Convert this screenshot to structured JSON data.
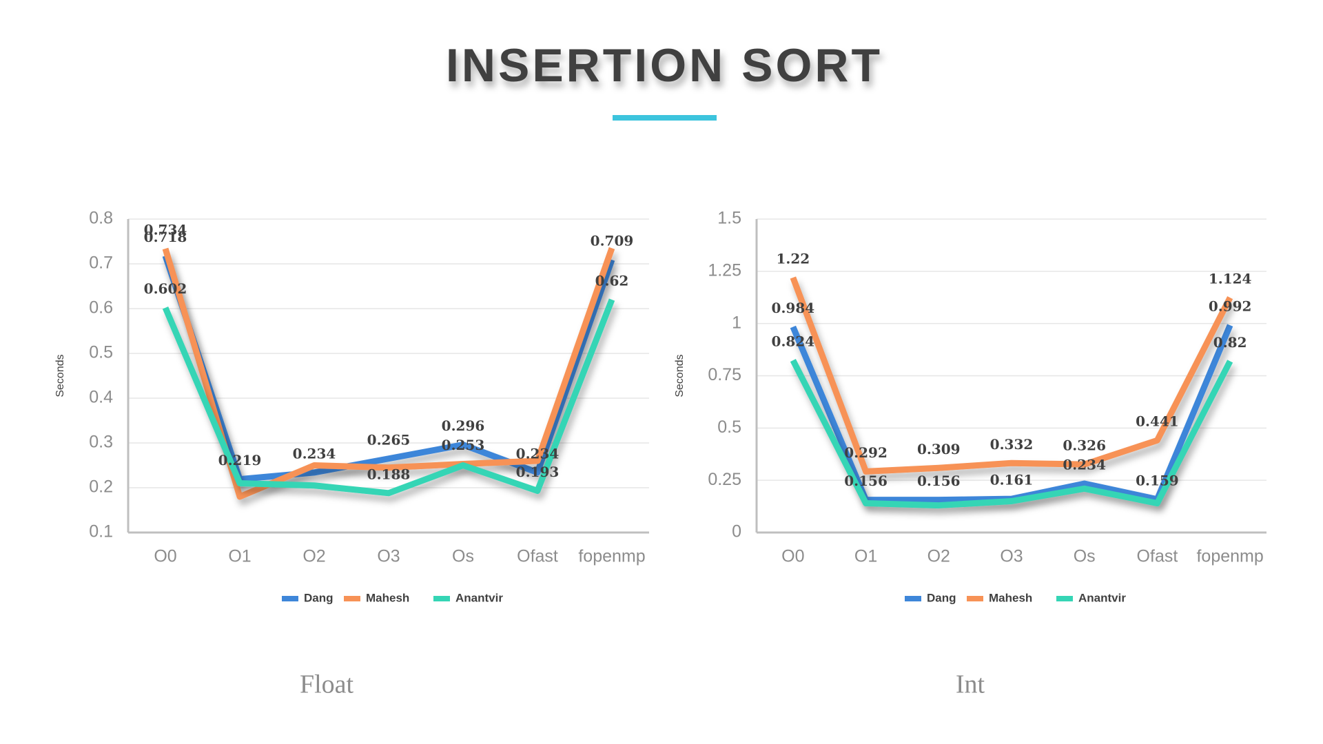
{
  "title": "INSERTION SORT",
  "chart_data": [
    {
      "type": "line",
      "subtitle": "Float",
      "y_label": "Seconds",
      "categories": [
        "O0",
        "O1",
        "O2",
        "O3",
        "Os",
        "Ofast",
        "fopenmp"
      ],
      "ylim": [
        0.1,
        0.8
      ],
      "yticks": [
        0.1,
        0.2,
        0.3,
        0.4,
        0.5,
        0.6,
        0.7,
        0.8
      ],
      "grid": true,
      "legend": "bottom",
      "series": [
        {
          "name": "Dang",
          "color": "#3e86d9",
          "values": [
            0.718,
            0.219,
            0.234,
            0.265,
            0.296,
            0.234,
            0.709
          ],
          "value_labels": [
            "0.718",
            "0.219",
            "0.234",
            "0.265",
            "0.296",
            "0.234",
            "0.709"
          ]
        },
        {
          "name": "Mahesh",
          "color": "#f79256",
          "values": [
            0.734,
            0.18,
            0.25,
            0.245,
            0.253,
            0.26,
            0.735
          ],
          "value_labels": [
            "0.734",
            null,
            null,
            null,
            "0.253",
            null,
            null
          ]
        },
        {
          "name": "Anantvir",
          "color": "#35d5b5",
          "values": [
            0.602,
            0.21,
            0.205,
            0.188,
            0.25,
            0.193,
            0.62
          ],
          "value_labels": [
            "0.602",
            null,
            null,
            "0.188",
            null,
            "0.193",
            "0.62"
          ]
        }
      ]
    },
    {
      "type": "line",
      "subtitle": "Int",
      "y_label": "Seconds",
      "categories": [
        "O0",
        "O1",
        "O2",
        "O3",
        "Os",
        "Ofast",
        "fopenmp"
      ],
      "ylim": [
        0,
        1.5
      ],
      "yticks": [
        0,
        0.25,
        0.5,
        0.75,
        1,
        1.25,
        1.5
      ],
      "grid": true,
      "legend": "bottom",
      "series": [
        {
          "name": "Dang",
          "color": "#3e86d9",
          "values": [
            0.984,
            0.156,
            0.156,
            0.161,
            0.234,
            0.159,
            0.992
          ],
          "value_labels": [
            "0.984",
            "0.156",
            "0.156",
            "0.161",
            "0.234",
            "0.159",
            "0.992"
          ]
        },
        {
          "name": "Mahesh",
          "color": "#f79256",
          "values": [
            1.22,
            0.292,
            0.309,
            0.332,
            0.326,
            0.441,
            1.124
          ],
          "value_labels": [
            "1.22",
            "0.292",
            "0.309",
            "0.332",
            "0.326",
            "0.441",
            "1.124"
          ]
        },
        {
          "name": "Anantvir",
          "color": "#35d5b5",
          "values": [
            0.824,
            0.14,
            0.13,
            0.15,
            0.21,
            0.14,
            0.82
          ],
          "value_labels": [
            "0.824",
            null,
            null,
            null,
            null,
            null,
            "0.82"
          ]
        }
      ]
    }
  ]
}
